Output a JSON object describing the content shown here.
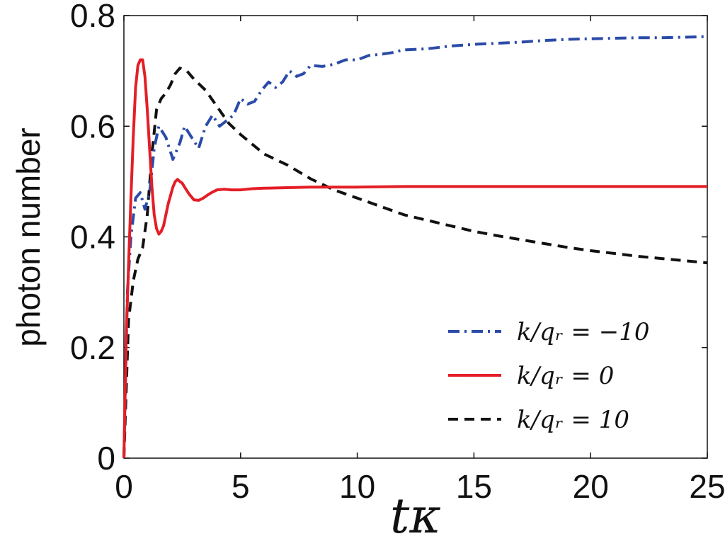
{
  "chart_data": {
    "type": "line",
    "xlabel": "tκ",
    "ylabel": "photon number",
    "xlim": [
      0,
      25
    ],
    "ylim": [
      0,
      0.8
    ],
    "xticks": [
      "0",
      "5",
      "10",
      "15",
      "20",
      "25"
    ],
    "yticks": [
      "0",
      "0.2",
      "0.4",
      "0.6",
      "0.8"
    ],
    "grid": false,
    "legend_position": "bottom-right",
    "series": [
      {
        "name": "k/q_r = −10",
        "legend_label": "k/qᵣ = −10",
        "color": "#2b4ba8",
        "style": "dashdot",
        "x": [
          0,
          0.15,
          0.3,
          0.5,
          0.7,
          0.9,
          1.1,
          1.3,
          1.5,
          1.8,
          2.1,
          2.4,
          2.6,
          2.9,
          3.2,
          3.5,
          3.8,
          4.1,
          4.4,
          4.7,
          5.0,
          5.3,
          5.6,
          5.9,
          6.2,
          6.5,
          6.8,
          7.1,
          7.4,
          7.7,
          8.0,
          8.5,
          9.0,
          9.5,
          10.0,
          10.5,
          11.0,
          11.5,
          12.0,
          13.0,
          14.0,
          15.0,
          16.0,
          17.0,
          18.0,
          19.0,
          20.0,
          21.0,
          22.0,
          23.0,
          24.0,
          25.0
        ],
        "y": [
          0,
          0.3,
          0.4,
          0.47,
          0.48,
          0.45,
          0.48,
          0.56,
          0.6,
          0.58,
          0.54,
          0.57,
          0.6,
          0.58,
          0.56,
          0.6,
          0.62,
          0.6,
          0.61,
          0.62,
          0.65,
          0.64,
          0.645,
          0.665,
          0.68,
          0.67,
          0.68,
          0.7,
          0.69,
          0.695,
          0.71,
          0.708,
          0.712,
          0.72,
          0.72,
          0.728,
          0.73,
          0.733,
          0.738,
          0.74,
          0.745,
          0.748,
          0.75,
          0.752,
          0.755,
          0.757,
          0.758,
          0.759,
          0.76,
          0.76,
          0.761,
          0.762
        ]
      },
      {
        "name": "k/q_r = 0",
        "legend_label": "k/qᵣ = 0",
        "color": "#e41e26",
        "style": "solid",
        "x": [
          0,
          0.1,
          0.2,
          0.3,
          0.4,
          0.5,
          0.6,
          0.7,
          0.8,
          0.9,
          1.0,
          1.1,
          1.2,
          1.3,
          1.4,
          1.5,
          1.6,
          1.7,
          1.8,
          1.9,
          2.0,
          2.1,
          2.2,
          2.3,
          2.4,
          2.5,
          2.6,
          2.8,
          3.0,
          3.2,
          3.4,
          3.6,
          3.8,
          4.0,
          4.3,
          4.6,
          5.0,
          5.5,
          6.0,
          7.0,
          8.0,
          9.0,
          10.0,
          12.0,
          15.0,
          20.0,
          25.0
        ],
        "y": [
          0,
          0.22,
          0.35,
          0.47,
          0.58,
          0.67,
          0.71,
          0.72,
          0.72,
          0.69,
          0.63,
          0.56,
          0.49,
          0.44,
          0.415,
          0.405,
          0.41,
          0.42,
          0.44,
          0.46,
          0.475,
          0.49,
          0.5,
          0.504,
          0.5,
          0.497,
          0.49,
          0.477,
          0.467,
          0.466,
          0.47,
          0.476,
          0.481,
          0.485,
          0.486,
          0.485,
          0.485,
          0.487,
          0.488,
          0.489,
          0.49,
          0.49,
          0.49,
          0.491,
          0.491,
          0.491,
          0.491
        ]
      },
      {
        "name": "k/q_r = 10",
        "legend_label": "k/qᵣ = 10",
        "color": "#111111",
        "style": "dashed",
        "x": [
          0,
          0.2,
          0.4,
          0.6,
          0.8,
          1.0,
          1.2,
          1.4,
          1.6,
          1.8,
          2.0,
          2.2,
          2.4,
          2.7,
          3.0,
          3.5,
          4.0,
          4.5,
          5.0,
          6.0,
          7.0,
          8.0,
          9.0,
          10.0,
          11.0,
          12.0,
          13.0,
          14.0,
          15.0,
          16.0,
          17.0,
          18.0,
          19.0,
          20.0,
          21.0,
          22.0,
          23.0,
          24.0,
          25.0
        ],
        "y": [
          0,
          0.25,
          0.32,
          0.36,
          0.38,
          0.44,
          0.55,
          0.63,
          0.65,
          0.66,
          0.675,
          0.695,
          0.705,
          0.7,
          0.685,
          0.665,
          0.635,
          0.605,
          0.585,
          0.55,
          0.53,
          0.505,
          0.485,
          0.47,
          0.455,
          0.44,
          0.43,
          0.42,
          0.41,
          0.402,
          0.395,
          0.388,
          0.381,
          0.375,
          0.37,
          0.365,
          0.361,
          0.357,
          0.353
        ]
      }
    ]
  }
}
